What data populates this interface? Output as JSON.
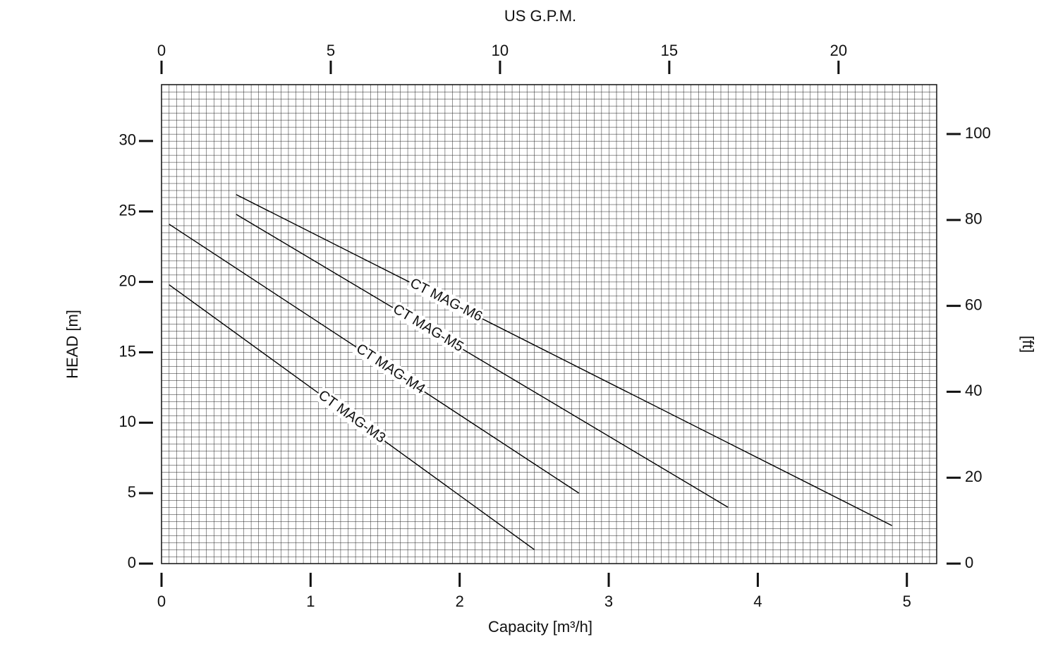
{
  "chart_data": {
    "type": "line",
    "title": "US G.P.M.",
    "x_label": "Capacity [m³/h]",
    "y_label": "HEAD [m]",
    "y2_label": "[ft]",
    "xlim": [
      0,
      5.2
    ],
    "xticks": [
      0,
      1,
      2,
      3,
      4,
      5
    ],
    "ylim": [
      0,
      34
    ],
    "yticks": [
      0,
      5,
      10,
      15,
      20,
      25,
      30
    ],
    "x2lim": [
      0,
      22.9
    ],
    "x2ticks": [
      0,
      5,
      10,
      15,
      20
    ],
    "y2lim": [
      0,
      111.5
    ],
    "y2ticks": [
      0,
      20,
      40,
      60,
      80,
      100
    ],
    "grid": true,
    "series": [
      {
        "name": "CT MAG-M6",
        "color": "#000000",
        "x": [
          0.5,
          4.9
        ],
        "values": [
          26.2,
          2.7
        ]
      },
      {
        "name": "CT MAG-M5",
        "color": "#000000",
        "x": [
          0.5,
          3.8
        ],
        "values": [
          24.8,
          4.0
        ]
      },
      {
        "name": "CT MAG-M4",
        "color": "#000000",
        "x": [
          0.05,
          2.8
        ],
        "values": [
          24.1,
          5.0
        ]
      },
      {
        "name": "CT MAG-M3",
        "color": "#000000",
        "x": [
          0.05,
          2.5
        ],
        "values": [
          19.8,
          1.0
        ]
      }
    ]
  }
}
